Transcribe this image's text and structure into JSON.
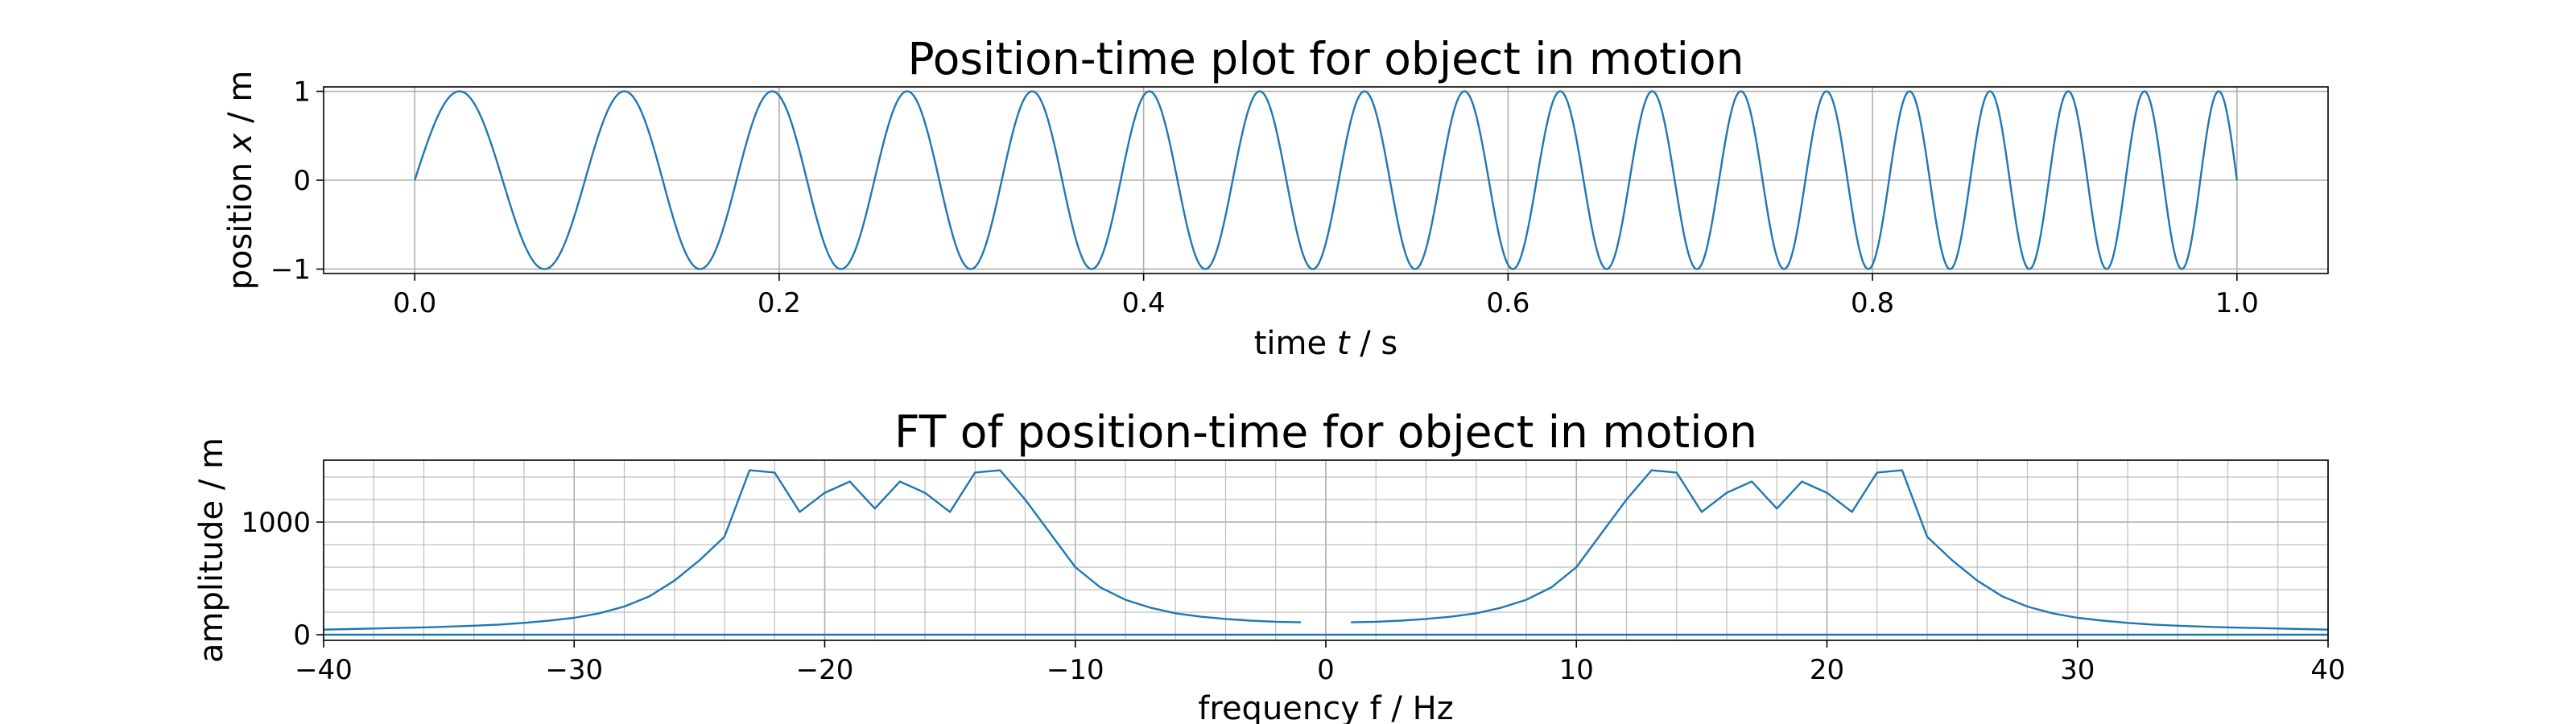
{
  "chart_data": [
    {
      "type": "line",
      "title": "Position-time plot for object in motion",
      "xlabel_prefix": "time ",
      "xlabel_var": "t",
      "xlabel_suffix": " / s",
      "ylabel_prefix": "position ",
      "ylabel_var": "x",
      "ylabel_suffix": " / m",
      "xlim": [
        -0.05,
        1.05
      ],
      "ylim": [
        -1.05,
        1.05
      ],
      "xticks": [
        0.0,
        0.2,
        0.4,
        0.6,
        0.8,
        1.0
      ],
      "xtick_labels": [
        "0.0",
        "0.2",
        "0.4",
        "0.6",
        "0.8",
        "1.0"
      ],
      "yticks": [
        -1,
        0,
        1
      ],
      "ytick_labels": [
        "−1",
        "0",
        "1"
      ],
      "grid": true,
      "color": "#1f77b4",
      "x_range": [
        0,
        1
      ],
      "signal": "x(t) = sin(2π(10t + 7.5t²))",
      "peak_times": [
        0.025,
        0.114,
        0.194,
        0.267,
        0.335,
        0.398,
        0.457,
        0.513,
        0.566,
        0.616,
        0.665,
        0.712,
        0.757,
        0.8,
        0.842,
        0.883,
        0.922,
        0.961
      ],
      "trough_times": [
        0.071,
        0.155,
        0.231,
        0.301,
        0.367,
        0.428,
        0.485,
        0.54,
        0.592,
        0.641,
        0.689,
        0.735,
        0.779,
        0.821,
        0.863,
        0.903,
        0.942,
        0.98
      ]
    },
    {
      "type": "line",
      "title": "FT of position-time for object in motion",
      "xlabel": "frequency f / Hz",
      "ylabel": "amplitude / m",
      "xlim": [
        -40,
        40
      ],
      "ylim": [
        -50,
        1550
      ],
      "xticks": [
        -40,
        -30,
        -20,
        -10,
        0,
        10,
        20,
        30,
        40
      ],
      "xtick_labels": [
        "−40",
        "−30",
        "−20",
        "−10",
        "0",
        "10",
        "20",
        "30",
        "40"
      ],
      "yticks": [
        0,
        1000
      ],
      "ytick_labels": [
        "0",
        "1000"
      ],
      "grid": true,
      "minor_grid": true,
      "color": "#1f77b4",
      "series": [
        {
          "x": [
            -40,
            -39,
            -38,
            -37,
            -36,
            -35,
            -34,
            -33,
            -32,
            -31,
            -30,
            -29,
            -28,
            -27,
            -26,
            -25,
            -24,
            -23,
            -22,
            -21,
            -20,
            -19,
            -18,
            -17,
            -16,
            -15,
            -14,
            -13,
            -12,
            -11,
            -10,
            -9,
            -8,
            -7,
            -6,
            -5,
            -4,
            -3,
            -2,
            -1
          ],
          "values": [
            45,
            50,
            55,
            60,
            65,
            72,
            80,
            90,
            105,
            125,
            150,
            190,
            250,
            340,
            480,
            660,
            870,
            1460,
            1440,
            1090,
            1260,
            1360,
            1120,
            1360,
            1260,
            1090,
            1440,
            1460,
            1200,
            900,
            600,
            420,
            310,
            240,
            190,
            160,
            140,
            125,
            115,
            110
          ]
        },
        {
          "x": [
            1,
            2,
            3,
            4,
            5,
            6,
            7,
            8,
            9,
            10,
            11,
            12,
            13,
            14,
            15,
            16,
            17,
            18,
            19,
            20,
            21,
            22,
            23,
            24,
            25,
            26,
            27,
            28,
            29,
            30,
            31,
            32,
            33,
            34,
            35,
            36,
            37,
            38,
            39,
            40
          ],
          "values": [
            110,
            115,
            125,
            140,
            160,
            190,
            240,
            310,
            420,
            600,
            900,
            1200,
            1460,
            1440,
            1090,
            1260,
            1360,
            1120,
            1360,
            1260,
            1090,
            1440,
            1460,
            870,
            660,
            480,
            340,
            250,
            190,
            150,
            125,
            105,
            90,
            80,
            72,
            65,
            60,
            55,
            50,
            45
          ]
        },
        {
          "x": [
            -40,
            40
          ],
          "values": [
            0,
            0
          ]
        }
      ]
    }
  ]
}
